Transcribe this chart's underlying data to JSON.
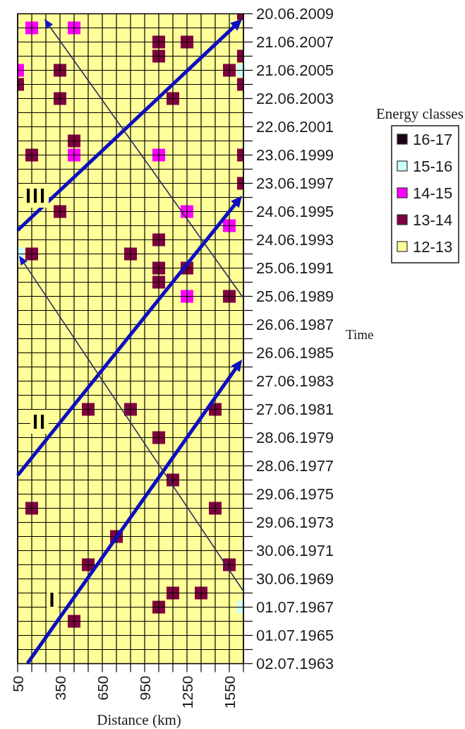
{
  "chart_data": {
    "type": "scatter",
    "orientation": "horizontal",
    "marker": "square",
    "grid": true,
    "legend": "right",
    "legend_title": "Energy classes",
    "xlabel": "Distance (km)",
    "ylabel": "Time",
    "categories": [
      "20.06.2009",
      null,
      "21.06.2007",
      null,
      "21.06.2005",
      null,
      "22.06.2003",
      null,
      "22.06.2001",
      null,
      "23.06.1999",
      null,
      "23.06.1997",
      null,
      "24.06.1995",
      null,
      "24.06.1993",
      null,
      "25.06.1991",
      null,
      "25.06.1989",
      null,
      "26.06.1987",
      null,
      "26.06.1985",
      null,
      "27.06.1983",
      null,
      "27.06.1981",
      null,
      "28.06.1979",
      null,
      "28.06.1977",
      null,
      "29.06.1975",
      null,
      "29.06.1973",
      null,
      "30.06.1971",
      null,
      "30.06.1969",
      null,
      "01.07.1967",
      null,
      "01.07.1965",
      null,
      "02.07.1963"
    ],
    "xlim": [
      50,
      1650
    ],
    "xticks": [
      50,
      {
        "value": 150,
        "label": null
      },
      {
        "value": 250,
        "label": null
      },
      350,
      {
        "value": 450,
        "label": null
      },
      {
        "value": 550,
        "label": null
      },
      650,
      {
        "value": 750,
        "label": null
      },
      {
        "value": 850,
        "label": null
      },
      950,
      {
        "value": 1050,
        "label": null
      },
      {
        "value": 1150,
        "label": null
      },
      1250,
      {
        "value": 1350,
        "label": null
      },
      {
        "value": 1450,
        "label": null
      },
      1550,
      {
        "value": 1650,
        "label": null
      }
    ],
    "bands": [
      {
        "axis": "x",
        "from": 50,
        "to": 1650,
        "color": "#ffff99"
      }
    ],
    "series": [
      {
        "name": "16-17",
        "color": "#1a001a",
        "values": [
          null,
          null,
          null,
          null,
          null,
          null,
          null,
          null,
          null,
          null,
          null,
          null,
          null,
          null,
          null,
          null,
          null,
          null,
          null,
          null,
          null,
          null,
          null,
          null,
          null,
          null,
          null,
          null,
          null,
          null,
          null,
          null,
          null,
          null,
          null,
          null,
          null,
          null,
          null,
          null,
          null,
          null,
          null,
          null,
          null,
          null,
          null
        ]
      },
      {
        "name": "15-16",
        "color": "#ccffff",
        "values": [
          null,
          null,
          null,
          null,
          1650,
          null,
          null,
          null,
          null,
          null,
          null,
          null,
          null,
          null,
          null,
          null,
          null,
          50,
          null,
          null,
          null,
          null,
          null,
          null,
          null,
          null,
          null,
          null,
          null,
          null,
          null,
          null,
          null,
          null,
          null,
          null,
          null,
          null,
          null,
          null,
          null,
          null,
          1650,
          null,
          null,
          null,
          null
        ]
      },
      {
        "name": "14-15",
        "color": "#ff00ff",
        "values": [
          null,
          150,
          null,
          null,
          50,
          null,
          null,
          null,
          null,
          null,
          450,
          null,
          null,
          null,
          1250,
          1550,
          null,
          null,
          null,
          null,
          1250,
          null,
          null,
          null,
          null,
          null,
          null,
          null,
          null,
          null,
          null,
          null,
          null,
          null,
          null,
          null,
          null,
          null,
          null,
          null,
          null,
          null,
          null,
          null,
          null,
          null,
          null
        ]
      },
      {
        "color": "#ff00ff",
        "values": [
          null,
          450,
          null,
          null,
          null,
          null,
          null,
          null,
          null,
          null,
          1050,
          null,
          null,
          null,
          null,
          null,
          null,
          null,
          null,
          null,
          null,
          null,
          null,
          null,
          null,
          null,
          null,
          null,
          null,
          null,
          null,
          null,
          null,
          null,
          null,
          null,
          null,
          null,
          null,
          null,
          null,
          null,
          null,
          null,
          null,
          null,
          null
        ]
      },
      {
        "name": "13-14",
        "color": "#800040",
        "values": [
          1650,
          null,
          1050,
          1050,
          350,
          50,
          350,
          null,
          null,
          450,
          150,
          null,
          1650,
          null,
          350,
          null,
          1050,
          150,
          1050,
          1050,
          1550,
          null,
          null,
          null,
          null,
          null,
          null,
          null,
          550,
          null,
          1050,
          null,
          null,
          1150,
          null,
          150,
          null,
          750,
          null,
          550,
          null,
          1150,
          1050,
          450,
          null,
          null,
          null
        ]
      },
      {
        "color": "#800040",
        "values": [
          null,
          null,
          1250,
          1650,
          1550,
          1650,
          1150,
          null,
          null,
          null,
          1650,
          null,
          null,
          null,
          null,
          null,
          null,
          850,
          1250,
          null,
          null,
          null,
          null,
          null,
          null,
          null,
          null,
          null,
          850,
          null,
          null,
          null,
          null,
          null,
          null,
          1450,
          null,
          null,
          null,
          1550,
          null,
          1350,
          null,
          null,
          null,
          null,
          null
        ]
      },
      {
        "color": "#800040",
        "values": [
          null,
          null,
          null,
          null,
          null,
          null,
          null,
          null,
          null,
          null,
          null,
          null,
          null,
          null,
          null,
          null,
          null,
          null,
          null,
          null,
          null,
          null,
          null,
          null,
          null,
          null,
          null,
          null,
          1450,
          null,
          null,
          null,
          null,
          null,
          null,
          null,
          null,
          null,
          null,
          null,
          null,
          null,
          null,
          null,
          null,
          null,
          null
        ]
      },
      {
        "name": "12-13",
        "color": "#ffff99",
        "values": [
          null,
          null,
          null,
          null,
          null,
          null,
          null,
          null,
          null,
          null,
          null,
          null,
          null,
          null,
          null,
          null,
          null,
          null,
          null,
          null,
          null,
          null,
          null,
          null,
          null,
          null,
          null,
          null,
          null,
          null,
          null,
          null,
          null,
          null,
          null,
          null,
          null,
          null,
          null,
          null,
          null,
          null,
          null,
          null,
          null,
          null,
          null
        ]
      }
    ],
    "annotations": [
      "III",
      "II",
      "I"
    ]
  }
}
